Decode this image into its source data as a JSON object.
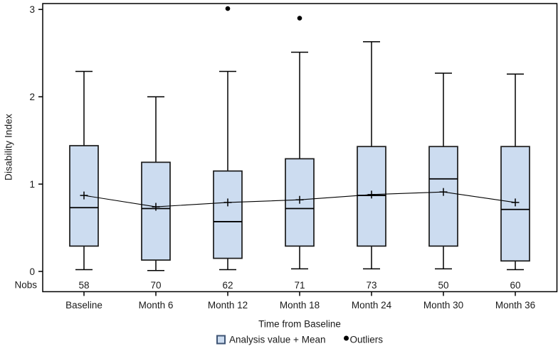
{
  "chart_data": {
    "type": "boxplot",
    "xlabel": "Time from Baseline",
    "ylabel": "Disability Index",
    "ylim": [
      0,
      3
    ],
    "yticks": [
      0,
      1,
      2,
      3
    ],
    "nobs_label": "Nobs",
    "categories": [
      "Baseline",
      "Month 6",
      "Month 12",
      "Month 18",
      "Month 24",
      "Month 30",
      "Month 36"
    ],
    "nobs": [
      58,
      70,
      62,
      71,
      73,
      50,
      60
    ],
    "series": [
      {
        "category": "Baseline",
        "min": 0.02,
        "q1": 0.29,
        "median": 0.73,
        "mean": 0.87,
        "q3": 1.44,
        "max": 2.29,
        "outliers": []
      },
      {
        "category": "Month 6",
        "min": 0.01,
        "q1": 0.13,
        "median": 0.72,
        "mean": 0.74,
        "q3": 1.25,
        "max": 2.0,
        "outliers": []
      },
      {
        "category": "Month 12",
        "min": 0.02,
        "q1": 0.15,
        "median": 0.57,
        "mean": 0.79,
        "q3": 1.15,
        "max": 2.29,
        "outliers": [
          3.01
        ]
      },
      {
        "category": "Month 18",
        "min": 0.03,
        "q1": 0.29,
        "median": 0.72,
        "mean": 0.82,
        "q3": 1.29,
        "max": 2.51,
        "outliers": [
          2.9
        ]
      },
      {
        "category": "Month 24",
        "min": 0.03,
        "q1": 0.29,
        "median": 0.87,
        "mean": 0.88,
        "q3": 1.43,
        "max": 2.63,
        "outliers": []
      },
      {
        "category": "Month 30",
        "min": 0.03,
        "q1": 0.29,
        "median": 1.06,
        "mean": 0.91,
        "q3": 1.43,
        "max": 2.27,
        "outliers": []
      },
      {
        "category": "Month 36",
        "min": 0.02,
        "q1": 0.12,
        "median": 0.71,
        "mean": 0.79,
        "q3": 1.43,
        "max": 2.26,
        "outliers": []
      }
    ],
    "legend": [
      {
        "label": "Analysis value + Mean",
        "marker": "box"
      },
      {
        "label": "Outliers",
        "marker": "dot"
      }
    ],
    "colors": {
      "box_fill": "#ccdcf0",
      "box_border": "#1a1a1a",
      "line": "#000000",
      "frame": "#000000",
      "legend_swatch_border": "#3f5575"
    },
    "layout_hints": {
      "grid": false,
      "legend_position": "bottom"
    }
  }
}
